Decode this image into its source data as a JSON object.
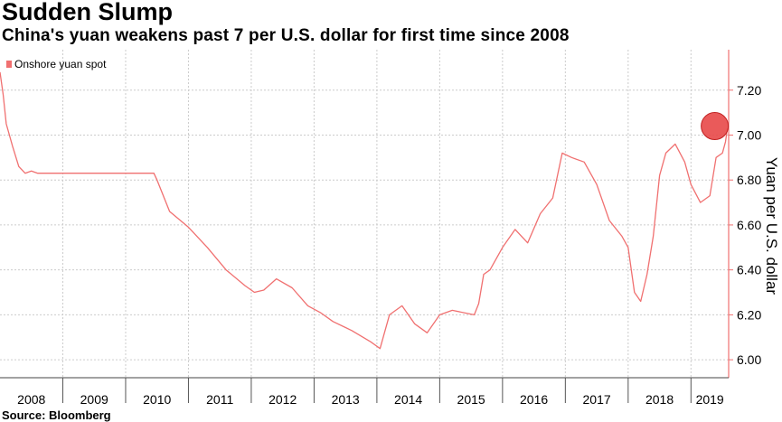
{
  "title": "Sudden Slump",
  "subtitle": "China's yuan weakens past 7 per U.S. dollar for first time since 2008",
  "source": "Source: Bloomberg",
  "colors": {
    "series": "#f07070",
    "highlight": "#e84848",
    "grid": "#cccccc"
  },
  "chart_data": {
    "type": "line",
    "xlabel": "",
    "ylabel": "Yuan per U.S. dollar",
    "xlim": [
      2008.0,
      2019.6
    ],
    "ylim": [
      5.92,
      7.38
    ],
    "y_ticks": [
      6.0,
      6.2,
      6.4,
      6.6,
      6.8,
      7.0,
      7.2
    ],
    "y_tick_labels": [
      "6.00",
      "6.20",
      "6.40",
      "6.60",
      "6.80",
      "7.00",
      "7.20"
    ],
    "x_categories": [
      "2008",
      "2009",
      "2010",
      "2011",
      "2012",
      "2013",
      "2014",
      "2015",
      "2016",
      "2017",
      "2018",
      "2019"
    ],
    "grid": true,
    "legend_position": "top-left",
    "annotation": {
      "type": "circle",
      "x": 2019.58,
      "y": 7.04
    },
    "series": [
      {
        "name": "Onshore yuan spot",
        "x": [
          2008.0,
          2008.05,
          2008.1,
          2008.2,
          2008.3,
          2008.4,
          2008.5,
          2008.6,
          2008.75,
          2009.0,
          2009.5,
          2010.0,
          2010.4,
          2010.45,
          2010.5,
          2010.7,
          2011.0,
          2011.3,
          2011.6,
          2011.9,
          2012.05,
          2012.2,
          2012.4,
          2012.65,
          2012.9,
          2013.1,
          2013.3,
          2013.6,
          2013.9,
          2014.05,
          2014.2,
          2014.4,
          2014.6,
          2014.8,
          2015.0,
          2015.2,
          2015.55,
          2015.62,
          2015.7,
          2015.8,
          2016.0,
          2016.2,
          2016.4,
          2016.6,
          2016.8,
          2016.95,
          2017.1,
          2017.3,
          2017.5,
          2017.7,
          2017.9,
          2018.0,
          2018.1,
          2018.2,
          2018.3,
          2018.4,
          2018.5,
          2018.6,
          2018.75,
          2018.9,
          2019.0,
          2019.15,
          2019.3,
          2019.4,
          2019.5,
          2019.55,
          2019.58
        ],
        "y": [
          7.28,
          7.18,
          7.05,
          6.95,
          6.86,
          6.83,
          6.84,
          6.83,
          6.83,
          6.83,
          6.83,
          6.83,
          6.83,
          6.83,
          6.8,
          6.66,
          6.59,
          6.5,
          6.4,
          6.33,
          6.3,
          6.31,
          6.36,
          6.32,
          6.24,
          6.21,
          6.17,
          6.13,
          6.08,
          6.05,
          6.2,
          6.24,
          6.16,
          6.12,
          6.2,
          6.22,
          6.2,
          6.25,
          6.38,
          6.4,
          6.5,
          6.58,
          6.52,
          6.65,
          6.72,
          6.92,
          6.9,
          6.88,
          6.78,
          6.62,
          6.55,
          6.5,
          6.3,
          6.26,
          6.38,
          6.55,
          6.82,
          6.92,
          6.96,
          6.88,
          6.78,
          6.7,
          6.73,
          6.9,
          6.92,
          6.97,
          7.03
        ]
      }
    ]
  }
}
